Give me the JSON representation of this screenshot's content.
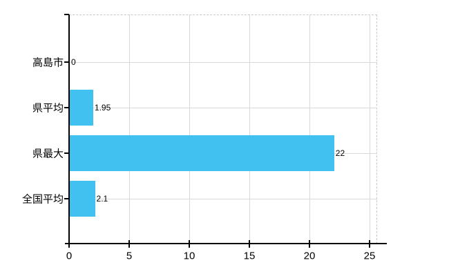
{
  "chart_data": {
    "type": "bar",
    "orientation": "horizontal",
    "title": "",
    "xlabel": "",
    "ylabel": "",
    "categories": [
      "高島市",
      "県平均",
      "県最大",
      "全国平均"
    ],
    "values": [
      0,
      1.95,
      22,
      2.1
    ],
    "value_labels": [
      "0",
      "1.95",
      "22",
      "2.1"
    ],
    "x_ticks": [
      0,
      5,
      10,
      15,
      20,
      25
    ],
    "x_tick_labels": [
      "0",
      "5",
      "10",
      "15",
      "20",
      "25"
    ],
    "xlim": [
      0,
      25.6
    ],
    "grid": true,
    "legend": false,
    "colors": {
      "bar": "#41C1EF",
      "grid": "#D9D9D9",
      "plot_border": "#C9C9C9",
      "axis": "#000000",
      "text": "#000000",
      "background": "#FFFFFF"
    }
  }
}
